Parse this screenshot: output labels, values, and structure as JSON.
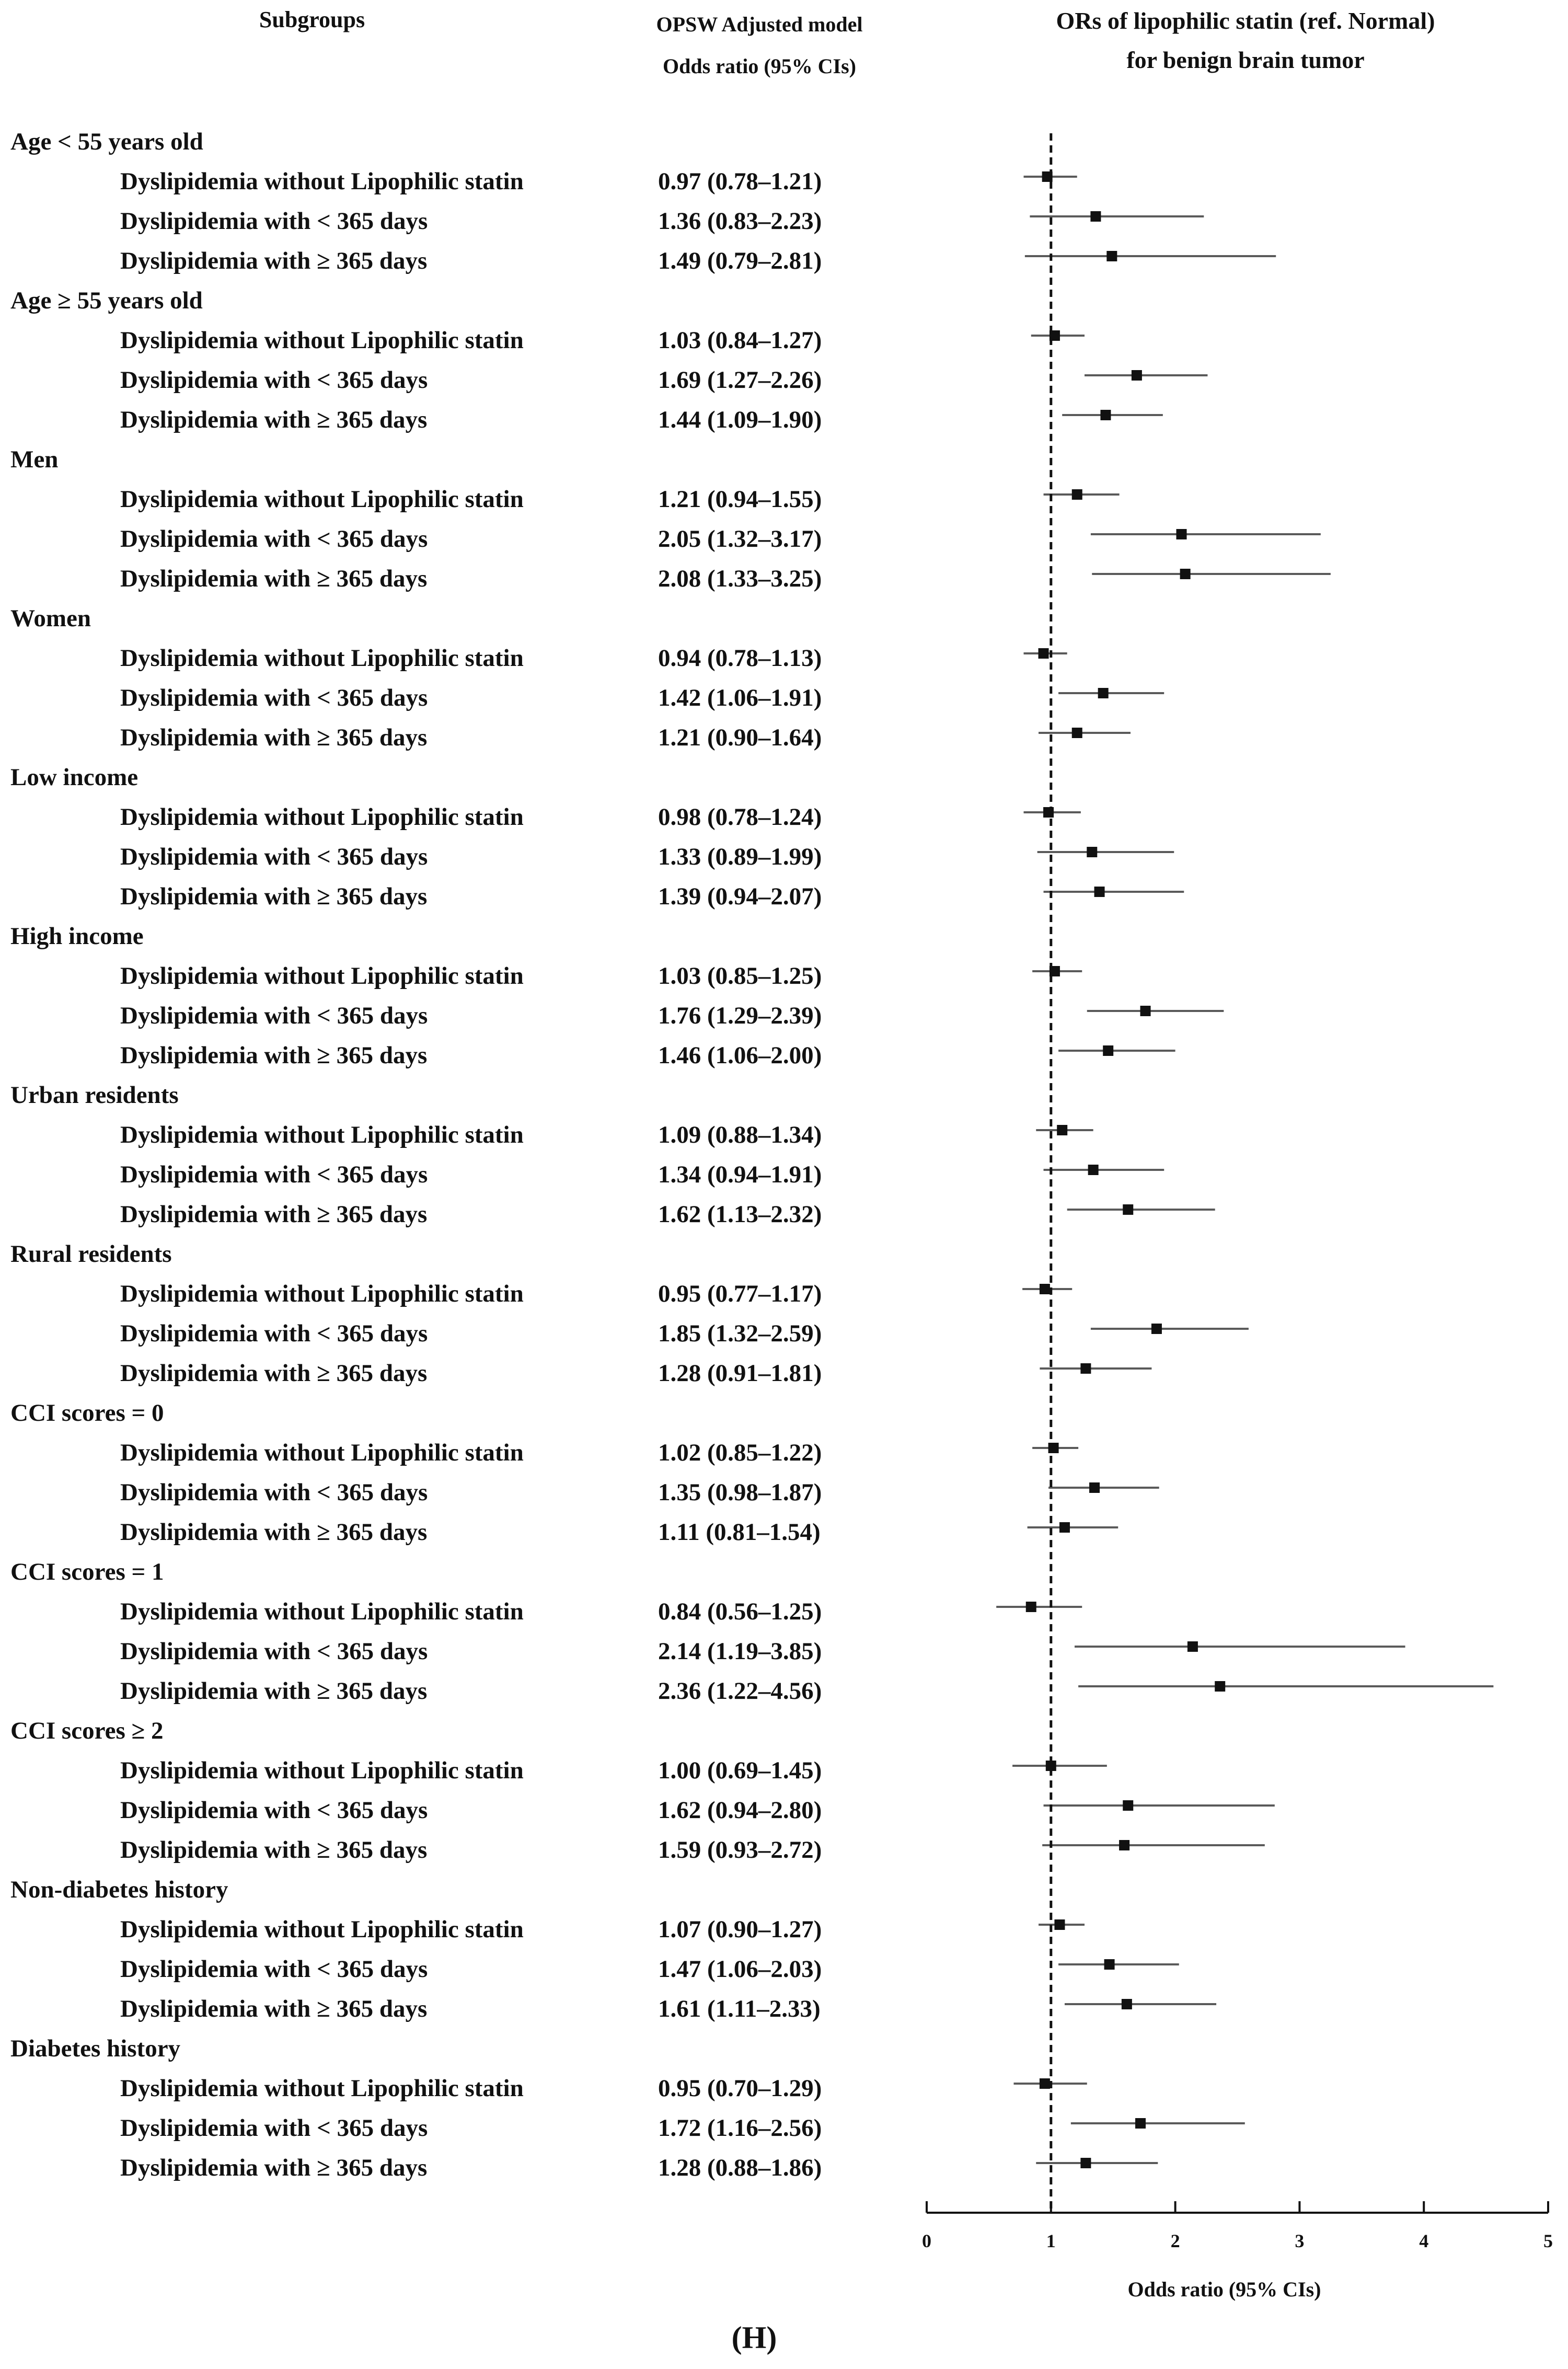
{
  "headers": {
    "subgroups": "Subgroups",
    "model_line1": "OPSW Adjusted model",
    "model_line2": "Odds ratio (95% CIs)",
    "plot_title_line1": "ORs of lipophilic statin (ref. Normal)",
    "plot_title_line2": "for benign brain tumor"
  },
  "panel_label": "(H)",
  "chart_data": {
    "type": "forest",
    "title": "ORs of lipophilic statin (ref. Normal) for benign brain tumor",
    "xlabel": "Odds ratio (95% CIs)",
    "xlim": [
      0,
      5
    ],
    "xticks": [
      "0",
      "1",
      "2",
      "3",
      "4",
      "5"
    ],
    "reference_line": 1,
    "groups": [
      {
        "name": "Age < 55 years old",
        "rows": [
          {
            "label": "Dyslipidemia without Lipophilic statin",
            "text": "0.97 (0.78–1.21)",
            "or": 0.97,
            "lo": 0.78,
            "hi": 1.21
          },
          {
            "label": "Dyslipidemia with < 365 days",
            "text": "1.36 (0.83–2.23)",
            "or": 1.36,
            "lo": 0.83,
            "hi": 2.23
          },
          {
            "label": "Dyslipidemia with ≥ 365 days",
            "text": "1.49 (0.79–2.81)",
            "or": 1.49,
            "lo": 0.79,
            "hi": 2.81
          }
        ]
      },
      {
        "name": "Age ≥ 55 years old",
        "rows": [
          {
            "label": "Dyslipidemia without Lipophilic statin",
            "text": "1.03 (0.84–1.27)",
            "or": 1.03,
            "lo": 0.84,
            "hi": 1.27
          },
          {
            "label": "Dyslipidemia with < 365 days",
            "text": "1.69 (1.27–2.26)",
            "or": 1.69,
            "lo": 1.27,
            "hi": 2.26
          },
          {
            "label": "Dyslipidemia with ≥ 365 days",
            "text": "1.44 (1.09–1.90)",
            "or": 1.44,
            "lo": 1.09,
            "hi": 1.9
          }
        ]
      },
      {
        "name": "Men",
        "rows": [
          {
            "label": "Dyslipidemia without Lipophilic statin",
            "text": "1.21 (0.94–1.55)",
            "or": 1.21,
            "lo": 0.94,
            "hi": 1.55
          },
          {
            "label": "Dyslipidemia with < 365 days",
            "text": "2.05 (1.32–3.17)",
            "or": 2.05,
            "lo": 1.32,
            "hi": 3.17
          },
          {
            "label": "Dyslipidemia with ≥ 365 days",
            "text": "2.08 (1.33–3.25)",
            "or": 2.08,
            "lo": 1.33,
            "hi": 3.25
          }
        ]
      },
      {
        "name": "Women",
        "rows": [
          {
            "label": "Dyslipidemia without Lipophilic statin",
            "text": "0.94 (0.78–1.13)",
            "or": 0.94,
            "lo": 0.78,
            "hi": 1.13
          },
          {
            "label": "Dyslipidemia with < 365 days",
            "text": "1.42 (1.06–1.91)",
            "or": 1.42,
            "lo": 1.06,
            "hi": 1.91
          },
          {
            "label": "Dyslipidemia with ≥ 365 days",
            "text": "1.21 (0.90–1.64)",
            "or": 1.21,
            "lo": 0.9,
            "hi": 1.64
          }
        ]
      },
      {
        "name": "Low income",
        "rows": [
          {
            "label": "Dyslipidemia without Lipophilic statin",
            "text": "0.98 (0.78–1.24)",
            "or": 0.98,
            "lo": 0.78,
            "hi": 1.24
          },
          {
            "label": "Dyslipidemia with < 365 days",
            "text": "1.33 (0.89–1.99)",
            "or": 1.33,
            "lo": 0.89,
            "hi": 1.99
          },
          {
            "label": "Dyslipidemia with ≥ 365 days",
            "text": "1.39 (0.94–2.07)",
            "or": 1.39,
            "lo": 0.94,
            "hi": 2.07
          }
        ]
      },
      {
        "name": "High income",
        "rows": [
          {
            "label": "Dyslipidemia without Lipophilic statin",
            "text": "1.03 (0.85–1.25)",
            "or": 1.03,
            "lo": 0.85,
            "hi": 1.25
          },
          {
            "label": "Dyslipidemia with < 365 days",
            "text": "1.76 (1.29–2.39)",
            "or": 1.76,
            "lo": 1.29,
            "hi": 2.39
          },
          {
            "label": "Dyslipidemia with ≥ 365 days",
            "text": "1.46 (1.06–2.00)",
            "or": 1.46,
            "lo": 1.06,
            "hi": 2.0
          }
        ]
      },
      {
        "name": "Urban residents",
        "rows": [
          {
            "label": "Dyslipidemia without Lipophilic statin",
            "text": "1.09 (0.88–1.34)",
            "or": 1.09,
            "lo": 0.88,
            "hi": 1.34
          },
          {
            "label": "Dyslipidemia with < 365 days",
            "text": "1.34 (0.94–1.91)",
            "or": 1.34,
            "lo": 0.94,
            "hi": 1.91
          },
          {
            "label": "Dyslipidemia with ≥ 365 days",
            "text": "1.62 (1.13–2.32)",
            "or": 1.62,
            "lo": 1.13,
            "hi": 2.32
          }
        ]
      },
      {
        "name": "Rural residents",
        "rows": [
          {
            "label": "Dyslipidemia without Lipophilic statin",
            "text": "0.95 (0.77–1.17)",
            "or": 0.95,
            "lo": 0.77,
            "hi": 1.17
          },
          {
            "label": "Dyslipidemia with < 365 days",
            "text": "1.85 (1.32–2.59)",
            "or": 1.85,
            "lo": 1.32,
            "hi": 2.59
          },
          {
            "label": "Dyslipidemia with ≥ 365 days",
            "text": "1.28 (0.91–1.81)",
            "or": 1.28,
            "lo": 0.91,
            "hi": 1.81
          }
        ]
      },
      {
        "name": "CCI scores = 0",
        "rows": [
          {
            "label": "Dyslipidemia without Lipophilic statin",
            "text": "1.02 (0.85–1.22)",
            "or": 1.02,
            "lo": 0.85,
            "hi": 1.22
          },
          {
            "label": "Dyslipidemia with < 365 days",
            "text": "1.35 (0.98–1.87)",
            "or": 1.35,
            "lo": 0.98,
            "hi": 1.87
          },
          {
            "label": "Dyslipidemia with ≥ 365 days",
            "text": "1.11 (0.81–1.54)",
            "or": 1.11,
            "lo": 0.81,
            "hi": 1.54
          }
        ]
      },
      {
        "name": "CCI scores = 1",
        "rows": [
          {
            "label": "Dyslipidemia without Lipophilic statin",
            "text": "0.84 (0.56–1.25)",
            "or": 0.84,
            "lo": 0.56,
            "hi": 1.25
          },
          {
            "label": "Dyslipidemia with < 365 days",
            "text": "2.14 (1.19–3.85)",
            "or": 2.14,
            "lo": 1.19,
            "hi": 3.85
          },
          {
            "label": "Dyslipidemia with ≥ 365 days",
            "text": "2.36 (1.22–4.56)",
            "or": 2.36,
            "lo": 1.22,
            "hi": 4.56
          }
        ]
      },
      {
        "name": "CCI scores ≥ 2",
        "rows": [
          {
            "label": "Dyslipidemia without Lipophilic statin",
            "text": "1.00 (0.69–1.45)",
            "or": 1.0,
            "lo": 0.69,
            "hi": 1.45
          },
          {
            "label": "Dyslipidemia with < 365 days",
            "text": "1.62 (0.94–2.80)",
            "or": 1.62,
            "lo": 0.94,
            "hi": 2.8
          },
          {
            "label": "Dyslipidemia with ≥ 365 days",
            "text": "1.59 (0.93–2.72)",
            "or": 1.59,
            "lo": 0.93,
            "hi": 2.72
          }
        ]
      },
      {
        "name": "Non-diabetes history",
        "rows": [
          {
            "label": "Dyslipidemia without Lipophilic statin",
            "text": "1.07 (0.90–1.27)",
            "or": 1.07,
            "lo": 0.9,
            "hi": 1.27
          },
          {
            "label": "Dyslipidemia with < 365 days",
            "text": "1.47 (1.06–2.03)",
            "or": 1.47,
            "lo": 1.06,
            "hi": 2.03
          },
          {
            "label": "Dyslipidemia with ≥ 365 days",
            "text": "1.61 (1.11–2.33)",
            "or": 1.61,
            "lo": 1.11,
            "hi": 2.33
          }
        ]
      },
      {
        "name": "Diabetes history",
        "rows": [
          {
            "label": "Dyslipidemia without Lipophilic statin",
            "text": "0.95 (0.70–1.29)",
            "or": 0.95,
            "lo": 0.7,
            "hi": 1.29
          },
          {
            "label": "Dyslipidemia with < 365 days",
            "text": "1.72 (1.16–2.56)",
            "or": 1.72,
            "lo": 1.16,
            "hi": 2.56
          },
          {
            "label": "Dyslipidemia with ≥ 365 days",
            "text": "1.28 (0.88–1.86)",
            "or": 1.28,
            "lo": 0.88,
            "hi": 1.86
          }
        ]
      }
    ]
  }
}
